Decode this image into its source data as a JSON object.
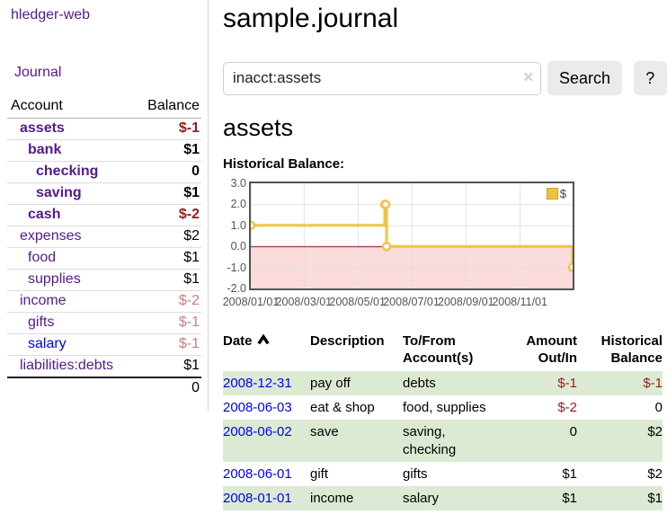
{
  "colors": {
    "purple_link": "#551a8b",
    "blue_link": "#0000ee",
    "negative": "#931d1a",
    "negative_muted": "#c87f7f",
    "stripe_green": "#dcead4",
    "series_gold": "#edc240"
  },
  "app": {
    "brand": "hledger-web"
  },
  "sidebar": {
    "journal_link": "Journal",
    "accounts": {
      "header_account": "Account",
      "header_balance": "Balance",
      "rows": [
        {
          "name": "assets",
          "balance": "$-1"
        },
        {
          "name": "bank",
          "balance": "$1"
        },
        {
          "name": "checking",
          "balance": "0"
        },
        {
          "name": "saving",
          "balance": "$1"
        },
        {
          "name": "cash",
          "balance": "$-2"
        },
        {
          "name": "expenses",
          "balance": "$2"
        },
        {
          "name": "food",
          "balance": "$1"
        },
        {
          "name": "supplies",
          "balance": "$1"
        },
        {
          "name": "income",
          "balance": "$-2"
        },
        {
          "name": "gifts",
          "balance": "$-1"
        },
        {
          "name": "salary",
          "balance": "$-1"
        },
        {
          "name": "liabilities:debts",
          "balance": "$1"
        }
      ],
      "total": "0"
    }
  },
  "main": {
    "title": "sample.journal",
    "search": {
      "value": "inacct:assets",
      "clear_icon": "×",
      "button_label": "Search",
      "help_label": "?"
    },
    "account_heading": "assets",
    "chart_title": "Historical Balance:"
  },
  "chart_data": {
    "type": "line",
    "title": "Historical Balance:",
    "legend": "$",
    "series": [
      {
        "name": "$",
        "color": "#edc240",
        "step": true,
        "points": [
          [
            "2008-01-01",
            1
          ],
          [
            "2008-06-01",
            2
          ],
          [
            "2008-06-02",
            2
          ],
          [
            "2008-06-03",
            0
          ],
          [
            "2008-12-31",
            -1
          ]
        ]
      }
    ],
    "x_range": [
      "2008-01-01",
      "2008-12-31"
    ],
    "ylim": [
      -2,
      3
    ],
    "yticks": [
      -2,
      -1,
      0,
      1,
      2,
      3
    ],
    "y_tick_labels": [
      "-2.0",
      "-1.0",
      "0.0",
      "1.0",
      "2.0",
      "3.0"
    ],
    "xticks": [
      "2008-01-01",
      "2008-03-01",
      "2008-05-01",
      "2008-07-01",
      "2008-09-01",
      "2008-11-01"
    ],
    "x_tick_labels": [
      "2008/01/01",
      "2008/03/01",
      "2008/05/01",
      "2008/07/01",
      "2008/09/01",
      "2008/11/01"
    ],
    "grid_on": true,
    "legend_position": "top-right",
    "negative_region_color": "#fbdbdb",
    "zero_line_color": "#8b0000",
    "grid_color": "#e0e0e0",
    "border_color": "#545454"
  },
  "transactions": {
    "headers": {
      "date": "Date",
      "description": "Description",
      "tofrom": "To/From Account(s)",
      "amount": "Amount Out/In",
      "balance": "Historical Balance"
    },
    "rows": [
      {
        "date": "2008-12-31",
        "description": "pay off",
        "accounts": "debts",
        "amount": "$-1",
        "balance": "$-1"
      },
      {
        "date": "2008-06-03",
        "description": "eat & shop",
        "accounts": "food, supplies",
        "amount": "$-2",
        "balance": "0"
      },
      {
        "date": "2008-06-02",
        "description": "save",
        "accounts": "saving, checking",
        "amount": "0",
        "balance": "$2"
      },
      {
        "date": "2008-06-01",
        "description": "gift",
        "accounts": "gifts",
        "amount": "$1",
        "balance": "$2"
      },
      {
        "date": "2008-01-01",
        "description": "income",
        "accounts": "salary",
        "amount": "$1",
        "balance": "$1"
      }
    ]
  }
}
